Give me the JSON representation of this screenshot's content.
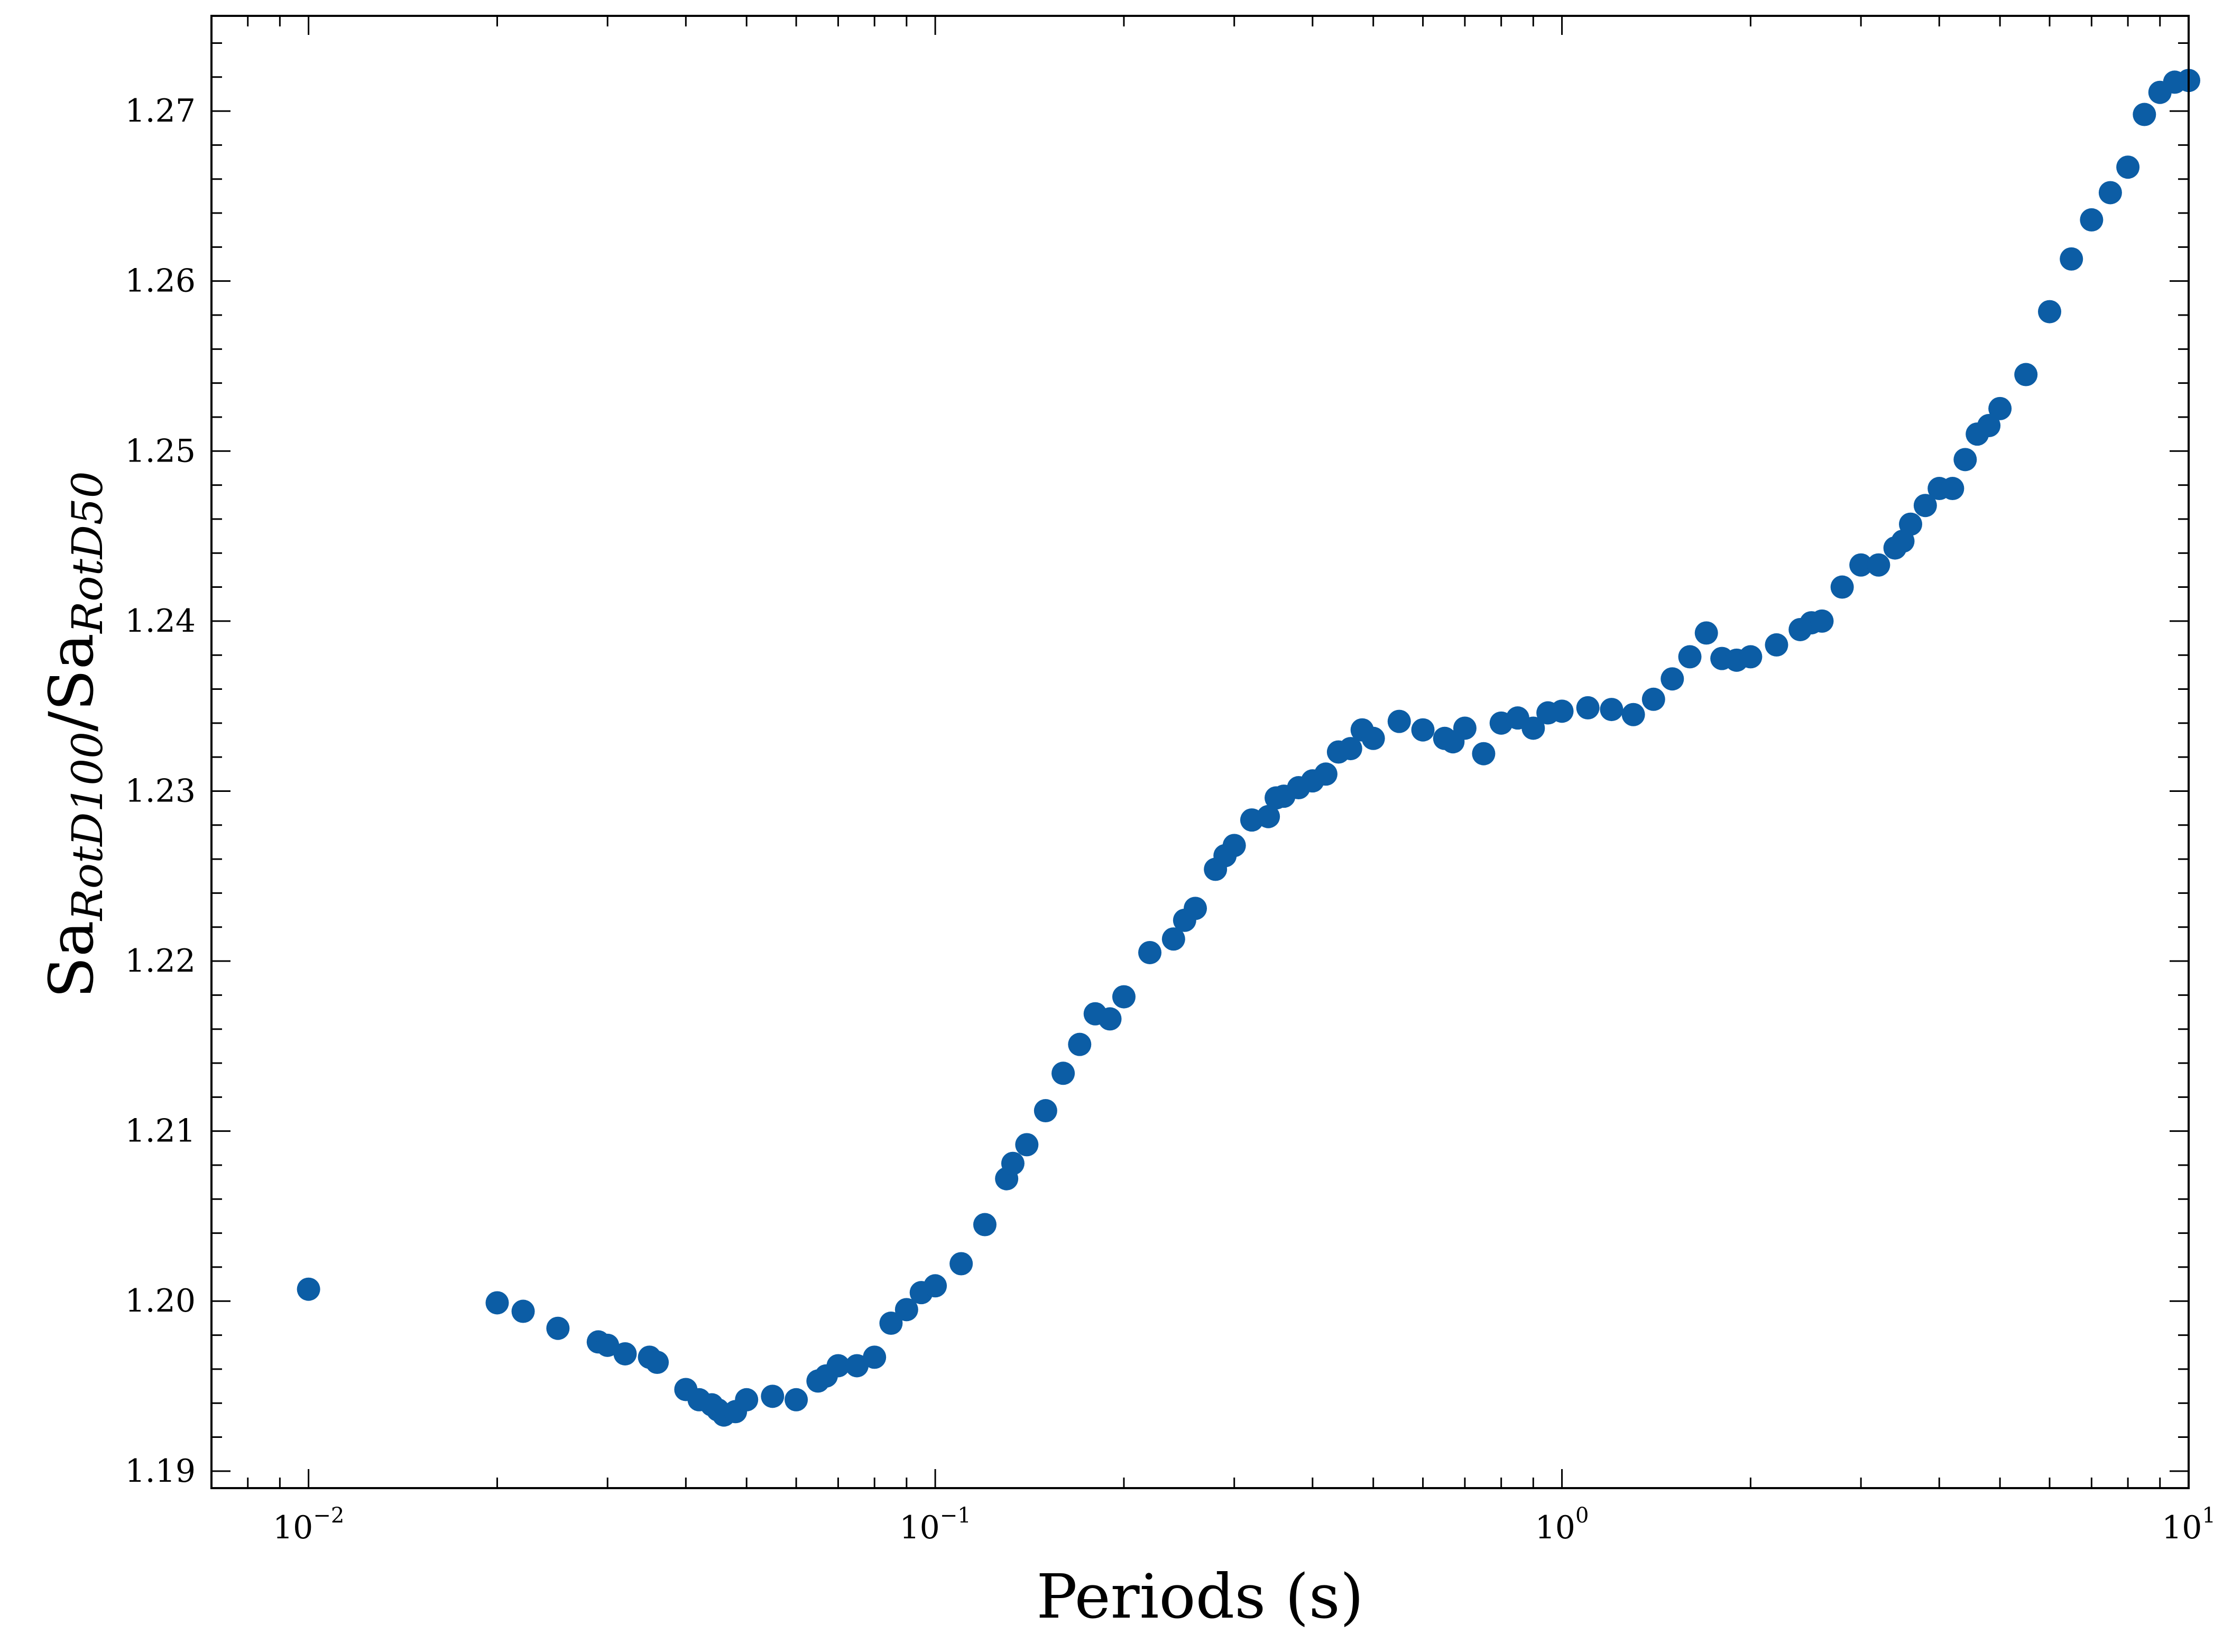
{
  "chart_data": {
    "type": "scatter",
    "xscale": "log",
    "xlabel": "Periods (s)",
    "ylabel": {
      "main1": "Sa",
      "sub1": "RotD100",
      "slash": "/",
      "main2": "Sa",
      "sub2": "RotD50"
    },
    "xlim": [
      0.007,
      10
    ],
    "ylim": [
      1.189,
      1.2756
    ],
    "x_ticks": [
      {
        "value": 0.01,
        "base": "10",
        "exp": "−2"
      },
      {
        "value": 0.1,
        "base": "10",
        "exp": "−1"
      },
      {
        "value": 1,
        "base": "10",
        "exp": "0"
      },
      {
        "value": 10,
        "base": "10",
        "exp": "1"
      }
    ],
    "y_ticks": [
      {
        "value": 1.19,
        "label": "1.19"
      },
      {
        "value": 1.2,
        "label": "1.20"
      },
      {
        "value": 1.21,
        "label": "1.21"
      },
      {
        "value": 1.22,
        "label": "1.22"
      },
      {
        "value": 1.23,
        "label": "1.23"
      },
      {
        "value": 1.24,
        "label": "1.24"
      },
      {
        "value": 1.25,
        "label": "1.25"
      },
      {
        "value": 1.26,
        "label": "1.26"
      },
      {
        "value": 1.27,
        "label": "1.27"
      }
    ],
    "marker_color": "#0C5DA5",
    "grid": false,
    "points": [
      [
        0.01,
        1.2007
      ],
      [
        0.02,
        1.1999
      ],
      [
        0.022,
        1.1994
      ],
      [
        0.025,
        1.1984
      ],
      [
        0.029,
        1.1976
      ],
      [
        0.03,
        1.1974
      ],
      [
        0.032,
        1.1969
      ],
      [
        0.035,
        1.1967
      ],
      [
        0.036,
        1.1964
      ],
      [
        0.04,
        1.1948
      ],
      [
        0.042,
        1.1942
      ],
      [
        0.044,
        1.1939
      ],
      [
        0.045,
        1.1936
      ],
      [
        0.046,
        1.1933
      ],
      [
        0.048,
        1.1935
      ],
      [
        0.05,
        1.1942
      ],
      [
        0.055,
        1.1944
      ],
      [
        0.06,
        1.1942
      ],
      [
        0.065,
        1.1953
      ],
      [
        0.067,
        1.1956
      ],
      [
        0.07,
        1.1962
      ],
      [
        0.075,
        1.1962
      ],
      [
        0.08,
        1.1967
      ],
      [
        0.085,
        1.1987
      ],
      [
        0.09,
        1.1995
      ],
      [
        0.095,
        1.2005
      ],
      [
        0.1,
        1.2009
      ],
      [
        0.11,
        1.2022
      ],
      [
        0.12,
        1.2045
      ],
      [
        0.13,
        1.2072
      ],
      [
        0.133,
        1.2081
      ],
      [
        0.14,
        1.2092
      ],
      [
        0.15,
        1.2112
      ],
      [
        0.16,
        1.2134
      ],
      [
        0.17,
        1.2151
      ],
      [
        0.18,
        1.2169
      ],
      [
        0.19,
        1.2166
      ],
      [
        0.2,
        1.2179
      ],
      [
        0.22,
        1.2205
      ],
      [
        0.24,
        1.2213
      ],
      [
        0.25,
        1.2224
      ],
      [
        0.26,
        1.2231
      ],
      [
        0.28,
        1.2254
      ],
      [
        0.29,
        1.2262
      ],
      [
        0.3,
        1.2268
      ],
      [
        0.32,
        1.2283
      ],
      [
        0.34,
        1.2285
      ],
      [
        0.35,
        1.2296
      ],
      [
        0.36,
        1.2297
      ],
      [
        0.38,
        1.2302
      ],
      [
        0.4,
        1.2306
      ],
      [
        0.42,
        1.231
      ],
      [
        0.44,
        1.2323
      ],
      [
        0.46,
        1.2325
      ],
      [
        0.48,
        1.2336
      ],
      [
        0.5,
        1.2331
      ],
      [
        0.55,
        1.2341
      ],
      [
        0.6,
        1.2336
      ],
      [
        0.65,
        1.2331
      ],
      [
        0.67,
        1.2329
      ],
      [
        0.7,
        1.2337
      ],
      [
        0.75,
        1.2322
      ],
      [
        0.8,
        1.234
      ],
      [
        0.85,
        1.2343
      ],
      [
        0.9,
        1.2337
      ],
      [
        0.95,
        1.2346
      ],
      [
        1.0,
        1.2347
      ],
      [
        1.1,
        1.2349
      ],
      [
        1.2,
        1.2348
      ],
      [
        1.3,
        1.2345
      ],
      [
        1.4,
        1.2354
      ],
      [
        1.5,
        1.2366
      ],
      [
        1.6,
        1.2379
      ],
      [
        1.7,
        1.2393
      ],
      [
        1.8,
        1.2378
      ],
      [
        1.9,
        1.2377
      ],
      [
        2.0,
        1.2379
      ],
      [
        2.2,
        1.2386
      ],
      [
        2.4,
        1.2395
      ],
      [
        2.5,
        1.2399
      ],
      [
        2.6,
        1.24
      ],
      [
        2.8,
        1.242
      ],
      [
        3.0,
        1.2433
      ],
      [
        3.2,
        1.2433
      ],
      [
        3.4,
        1.2443
      ],
      [
        3.5,
        1.2447
      ],
      [
        3.6,
        1.2457
      ],
      [
        3.8,
        1.2468
      ],
      [
        4.0,
        1.2478
      ],
      [
        4.2,
        1.2478
      ],
      [
        4.4,
        1.2495
      ],
      [
        4.6,
        1.251
      ],
      [
        4.8,
        1.2515
      ],
      [
        5.0,
        1.2525
      ],
      [
        5.5,
        1.2545
      ],
      [
        6.0,
        1.2582
      ],
      [
        6.5,
        1.2613
      ],
      [
        7.0,
        1.2636
      ],
      [
        7.5,
        1.2652
      ],
      [
        8.0,
        1.2667
      ],
      [
        8.5,
        1.2698
      ],
      [
        9.0,
        1.2711
      ],
      [
        9.5,
        1.2717
      ],
      [
        10.0,
        1.2718
      ]
    ]
  }
}
